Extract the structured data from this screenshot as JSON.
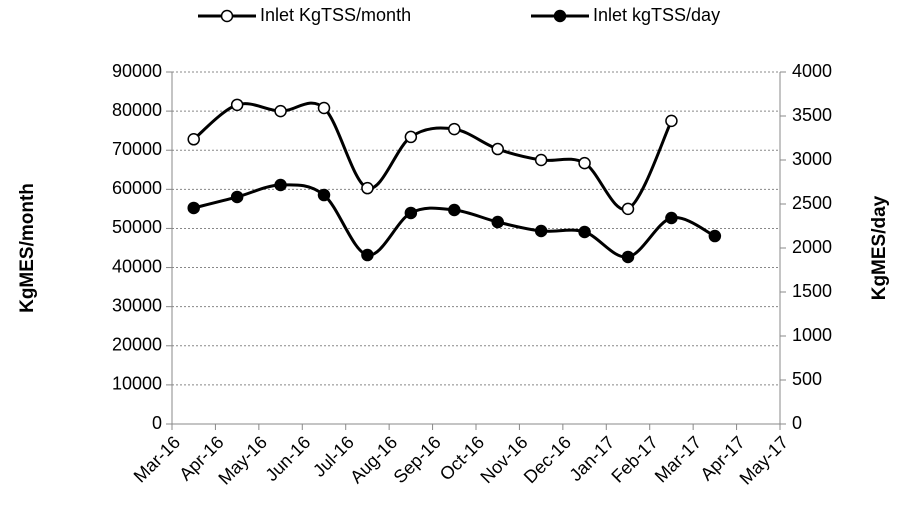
{
  "chart_data": {
    "type": "line",
    "xlim": [
      0,
      14
    ],
    "xticks": [
      {
        "value": 0,
        "label": "Mar-16"
      },
      {
        "value": 1,
        "label": "Apr-16"
      },
      {
        "value": 2,
        "label": "May-16"
      },
      {
        "value": 3,
        "label": "Jun-16"
      },
      {
        "value": 4,
        "label": "Jul-16"
      },
      {
        "value": 5,
        "label": "Aug-16"
      },
      {
        "value": 6,
        "label": "Sep-16"
      },
      {
        "value": 7,
        "label": "Oct-16"
      },
      {
        "value": 8,
        "label": "Nov-16"
      },
      {
        "value": 9,
        "label": "Dec-16"
      },
      {
        "value": 10,
        "label": "Jan-17"
      },
      {
        "value": 11,
        "label": "Feb-17"
      },
      {
        "value": 12,
        "label": "Mar-17"
      },
      {
        "value": 13,
        "label": "Apr-17"
      },
      {
        "value": 14,
        "label": "May-17"
      }
    ],
    "ylabel": "KgMES/month",
    "y2label": "KgMES/day",
    "ylim": [
      0,
      90000
    ],
    "yticks": [
      0,
      10000,
      20000,
      30000,
      40000,
      50000,
      60000,
      70000,
      80000,
      90000
    ],
    "y2lim": [
      0,
      4000
    ],
    "y2ticks": [
      0,
      500,
      1000,
      1500,
      2000,
      2500,
      3000,
      3500,
      4000
    ],
    "grid": true,
    "legend": "top",
    "series": [
      {
        "name": "Inlet KgTSS/month",
        "color": "#000000",
        "marker": "open",
        "x": [
          0.5,
          1.5,
          2.5,
          3.5,
          4.5,
          5.5,
          6.5,
          7.5,
          8.5,
          9.5,
          10.5,
          11.5
        ],
        "values": [
          72800,
          81600,
          80000,
          80800,
          60300,
          73400,
          75400,
          70300,
          67500,
          66700,
          55000,
          77500
        ]
      },
      {
        "name": "Inlet kgTSS/day",
        "color": "#000000",
        "marker": "filled",
        "axis": "y2",
        "x": [
          0.5,
          1.5,
          2.5,
          3.5,
          4.5,
          5.5,
          6.5,
          7.5,
          8.5,
          9.5,
          10.5,
          11.5,
          12.5
        ],
        "values": [
          2455,
          2580,
          2716,
          2602,
          1920,
          2398,
          2432,
          2295,
          2193,
          2182,
          1898,
          2341,
          2136
        ]
      }
    ]
  }
}
